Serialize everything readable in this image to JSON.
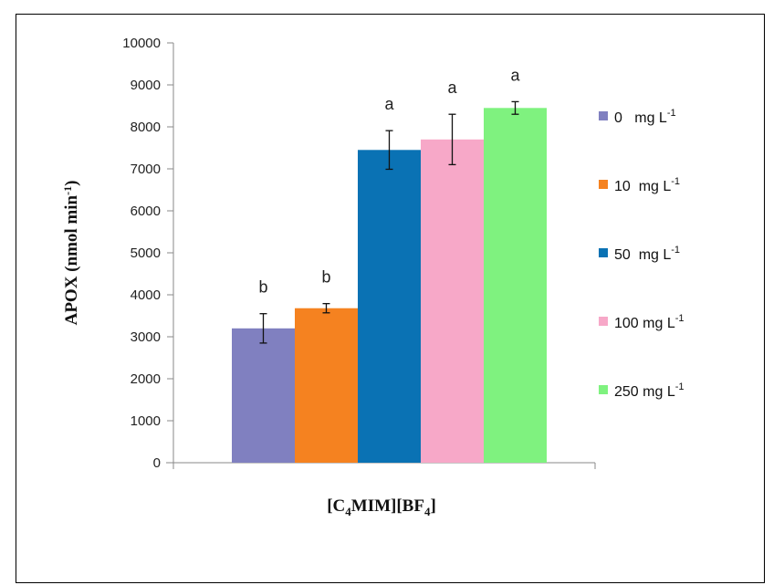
{
  "chart_data": {
    "type": "bar",
    "categories": [
      "[C4MIM][BF4]"
    ],
    "xlabel": {
      "main": "[C",
      "sub1": "4",
      "mid": "MIM][BF",
      "sub2": "4",
      "end": "]"
    },
    "ylabel": {
      "main": "APOX (nmol min",
      "sup": "-1",
      "end": ")"
    },
    "ylim": [
      0,
      10000
    ],
    "yticks": [
      0,
      1000,
      2000,
      3000,
      4000,
      5000,
      6000,
      7000,
      8000,
      9000,
      10000
    ],
    "legend_position": "right",
    "series": [
      {
        "name": "0   mg L-1",
        "legend": {
          "main": "0   mg L",
          "sup": "-1"
        },
        "value": 3200,
        "error": 350,
        "letter": "b",
        "color": "#8080c0"
      },
      {
        "name": "10  mg L-1",
        "legend": {
          "main": "10  mg L",
          "sup": "-1"
        },
        "value": 3680,
        "error": 110,
        "letter": "b",
        "color": "#f58220"
      },
      {
        "name": "50  mg L-1",
        "legend": {
          "main": "50  mg L",
          "sup": "-1"
        },
        "value": 7450,
        "error": 460,
        "letter": "a",
        "color": "#0a72b4"
      },
      {
        "name": "100 mg L-1",
        "legend": {
          "main": "100 mg L",
          "sup": "-1"
        },
        "value": 7700,
        "error": 600,
        "letter": "a",
        "color": "#f7a8c8"
      },
      {
        "name": "250 mg L-1",
        "legend": {
          "main": "250 mg L",
          "sup": "-1"
        },
        "value": 8450,
        "error": 150,
        "letter": "a",
        "color": "#7ff27f"
      }
    ]
  }
}
